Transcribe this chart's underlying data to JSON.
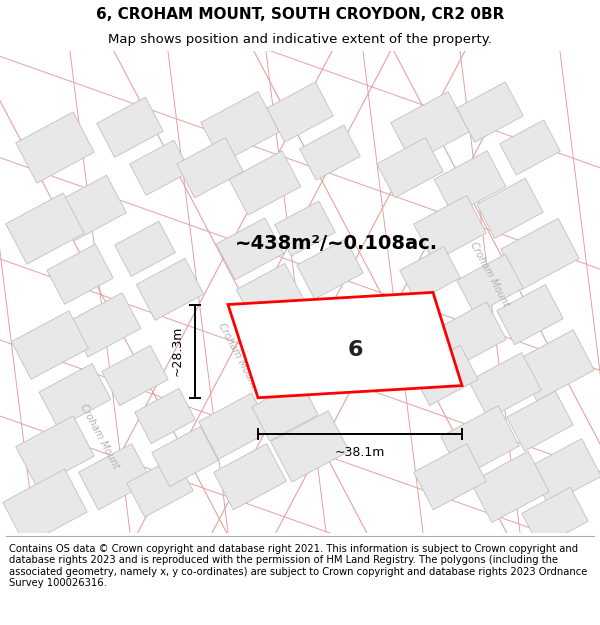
{
  "title": "6, CROHAM MOUNT, SOUTH CROYDON, CR2 0BR",
  "subtitle": "Map shows position and indicative extent of the property.",
  "area_label": "~438m²/~0.108ac.",
  "plot_number": "6",
  "width_label": "~38.1m",
  "height_label": "~28.3m",
  "footer": "Contains OS data © Crown copyright and database right 2021. This information is subject to Crown copyright and database rights 2023 and is reproduced with the permission of HM Land Registry. The polygons (including the associated geometry, namely x, y co-ordinates) are subject to Crown copyright and database rights 2023 Ordnance Survey 100026316.",
  "bg_color": "#f5f5f5",
  "map_bg": "#f8f8f8",
  "road_outline_color": "#e8a0a0",
  "building_fill": "#e8e8e8",
  "building_edge": "#c0c0c0",
  "road_text_color": "#b0b0b0",
  "plot_color": "#ff0000",
  "title_fontsize": 11,
  "subtitle_fontsize": 9.5,
  "footer_fontsize": 7.2,
  "area_fontsize": 14,
  "plot_num_fontsize": 16,
  "meas_fontsize": 9
}
